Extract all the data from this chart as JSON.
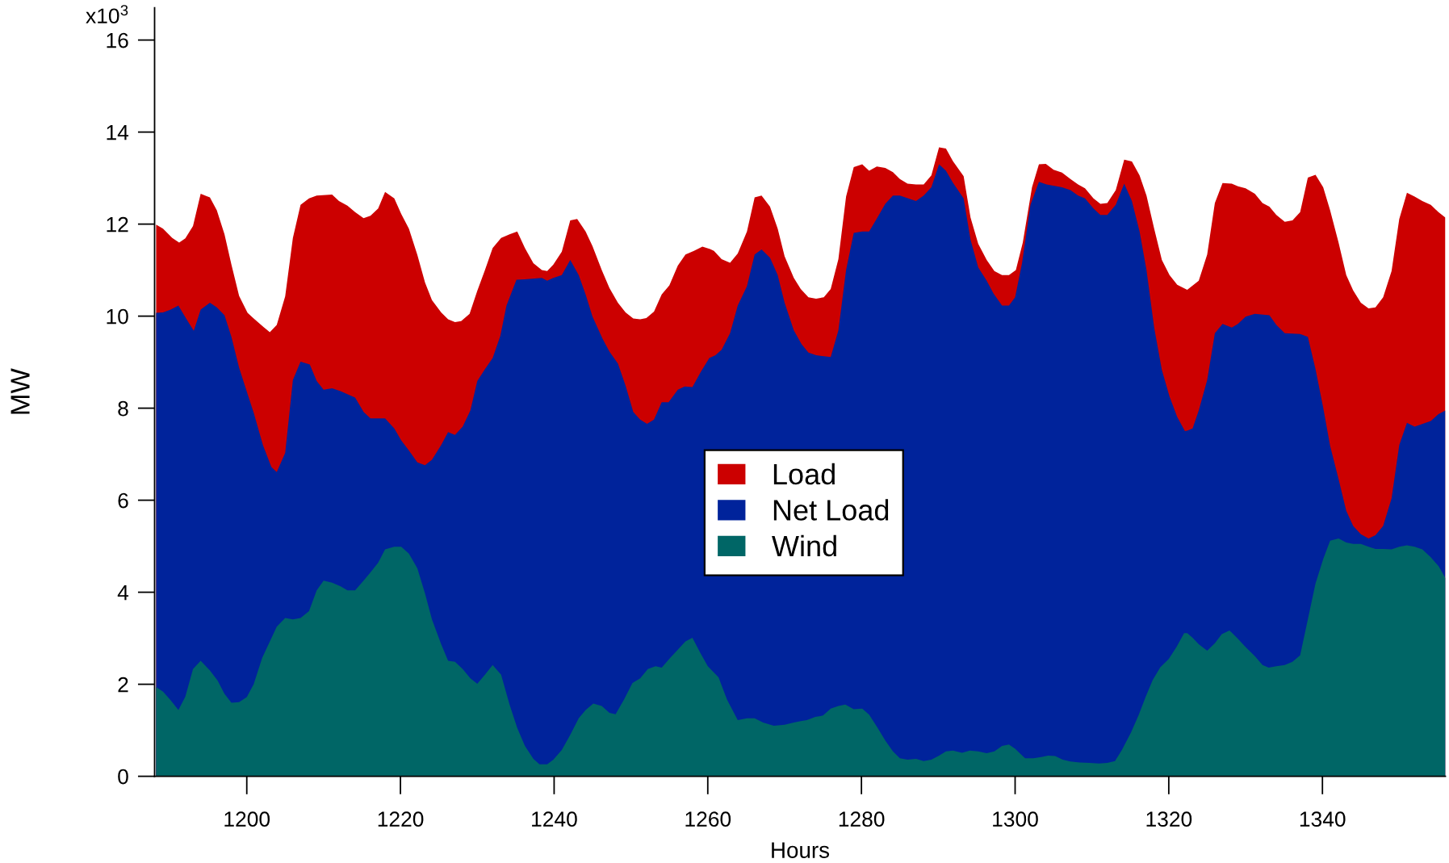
{
  "chart_data": {
    "type": "area",
    "xlabel": "Hours",
    "ylabel": "MW",
    "xlim": [
      1188,
      1356
    ],
    "xticks": [
      1200,
      1220,
      1240,
      1260,
      1280,
      1300,
      1320,
      1340
    ],
    "ylim": [
      0,
      16.7
    ],
    "yticks": [
      0,
      2,
      4,
      6,
      8,
      10,
      12,
      14,
      16
    ],
    "annotations": [
      "x10$^{3}$"
    ],
    "legend": "center",
    "series": [
      {
        "name": "Load",
        "color": "#cc0000",
        "x": [
          1188.2,
          1189.1,
          1190.3,
          1191.2,
          1192.0,
          1193.0,
          1194.0,
          1195.2,
          1196.1,
          1197.1,
          1198.0,
          1199.0,
          1200.1,
          1200.9,
          1202.2,
          1203.0,
          1203.9,
          1205.0,
          1206.0,
          1207.0,
          1208.1,
          1209.1,
          1211.1,
          1212.0,
          1213.1,
          1214.1,
          1215.2,
          1216.1,
          1217.1,
          1218.0,
          1219.2,
          1220.1,
          1221.1,
          1222.2,
          1223.2,
          1224.1,
          1225.3,
          1226.2,
          1227.1,
          1227.9,
          1229.0,
          1230.0,
          1231.0,
          1232.0,
          1233.1,
          1234.2,
          1235.2,
          1236.2,
          1237.3,
          1238.4,
          1239.1,
          1239.9,
          1241.0,
          1242.1,
          1243.0,
          1244.1,
          1245.0,
          1246.2,
          1247.2,
          1248.3,
          1249.3,
          1250.3,
          1251.2,
          1252.0,
          1253.0,
          1254.0,
          1255.0,
          1256.1,
          1257.1,
          1258.2,
          1259.3,
          1260.3,
          1260.8,
          1261.8,
          1262.9,
          1263.9,
          1265.1,
          1266.1,
          1267.0,
          1268.1,
          1269.1,
          1270.0,
          1271.2,
          1272.1,
          1273.1,
          1274.1,
          1275.1,
          1276.0,
          1277.0,
          1278.0,
          1279.0,
          1280.1,
          1281.0,
          1282.0,
          1283.1,
          1284.1,
          1285.0,
          1286.0,
          1287.1,
          1288.1,
          1289.1,
          1290.1,
          1291.0,
          1291.9,
          1293.3,
          1294.2,
          1295.2,
          1296.3,
          1297.3,
          1298.3,
          1299.2,
          1300.1,
          1301.0,
          1302.2,
          1303.1,
          1304.0,
          1305.0,
          1306.1,
          1307.2,
          1308.2,
          1309.1,
          1310.2,
          1311.1,
          1312.0,
          1313.1,
          1314.2,
          1315.2,
          1316.2,
          1317.1,
          1318.1,
          1319.1,
          1320.1,
          1321.1,
          1322.4,
          1323.9,
          1325.0,
          1326.0,
          1327.0,
          1328.2,
          1329.0,
          1330.0,
          1331.2,
          1332.2,
          1333.1,
          1334.0,
          1335.1,
          1336.1,
          1337.1,
          1338.1,
          1339.1,
          1340.1,
          1341.0,
          1342.1,
          1343.1,
          1344.0,
          1345.0,
          1346.0,
          1346.9,
          1347.9,
          1349.0,
          1350.0,
          1351.0,
          1352.0,
          1353.0,
          1354.1,
          1355.1,
          1356.0
        ],
        "values": [
          11.99,
          11.9,
          11.7,
          11.6,
          11.69,
          11.96,
          12.66,
          12.58,
          12.3,
          11.78,
          11.12,
          10.44,
          10.07,
          9.95,
          9.76,
          9.65,
          9.81,
          10.43,
          11.7,
          12.42,
          12.56,
          12.62,
          12.64,
          12.5,
          12.4,
          12.26,
          12.13,
          12.18,
          12.34,
          12.7,
          12.56,
          12.22,
          11.9,
          11.33,
          10.73,
          10.35,
          10.08,
          9.93,
          9.87,
          9.89,
          10.05,
          10.55,
          11.0,
          11.48,
          11.7,
          11.78,
          11.84,
          11.48,
          11.15,
          11.0,
          10.98,
          11.12,
          11.4,
          12.08,
          12.11,
          11.84,
          11.52,
          11.0,
          10.61,
          10.29,
          10.08,
          9.95,
          9.93,
          9.96,
          10.1,
          10.47,
          10.67,
          11.1,
          11.34,
          11.42,
          11.51,
          11.46,
          11.42,
          11.24,
          11.16,
          11.36,
          11.84,
          12.58,
          12.62,
          12.38,
          11.9,
          11.3,
          10.83,
          10.59,
          10.41,
          10.38,
          10.41,
          10.59,
          11.24,
          12.6,
          13.24,
          13.3,
          13.16,
          13.25,
          13.22,
          13.13,
          12.98,
          12.88,
          12.86,
          12.86,
          13.06,
          13.67,
          13.64,
          13.37,
          13.04,
          12.14,
          11.57,
          11.22,
          10.98,
          10.89,
          10.89,
          11.0,
          11.6,
          12.8,
          13.3,
          13.31,
          13.18,
          13.12,
          12.98,
          12.86,
          12.78,
          12.56,
          12.44,
          12.46,
          12.74,
          13.4,
          13.36,
          13.06,
          12.62,
          11.9,
          11.22,
          10.89,
          10.68,
          10.57,
          10.77,
          11.34,
          12.46,
          12.89,
          12.88,
          12.82,
          12.78,
          12.66,
          12.46,
          12.38,
          12.2,
          12.05,
          12.08,
          12.26,
          13.01,
          13.07,
          12.8,
          12.3,
          11.6,
          10.89,
          10.56,
          10.29,
          10.17,
          10.19,
          10.41,
          10.98,
          12.11,
          12.68,
          12.6,
          12.5,
          12.42,
          12.26,
          12.14
        ]
      },
      {
        "name": "Net Load",
        "color": "#00239b",
        "x": [
          1188.2,
          1189.1,
          1190.1,
          1191.1,
          1192.1,
          1193.1,
          1194.0,
          1195.2,
          1196.1,
          1197.1,
          1198.0,
          1199.0,
          1200.1,
          1200.9,
          1202.1,
          1203.2,
          1203.9,
          1205.0,
          1206.0,
          1207.0,
          1208.2,
          1209.1,
          1210.0,
          1211.1,
          1212.2,
          1214.1,
          1215.2,
          1216.1,
          1218.0,
          1219.2,
          1220.1,
          1221.1,
          1222.2,
          1223.2,
          1224.1,
          1225.3,
          1226.2,
          1227.1,
          1228.1,
          1229.1,
          1230.0,
          1231.0,
          1232.0,
          1233.0,
          1233.8,
          1235.1,
          1236.2,
          1238.4,
          1239.1,
          1239.9,
          1241.0,
          1242.1,
          1243.2,
          1244.1,
          1245.0,
          1246.3,
          1247.2,
          1248.3,
          1249.3,
          1250.3,
          1251.2,
          1252.1,
          1253.0,
          1254.0,
          1254.9,
          1256.1,
          1257.0,
          1258.0,
          1259.1,
          1260.2,
          1261.0,
          1261.8,
          1262.9,
          1263.9,
          1265.1,
          1266.1,
          1267.0,
          1268.1,
          1269.1,
          1270.0,
          1271.2,
          1272.2,
          1273.1,
          1274.1,
          1275.1,
          1276.0,
          1277.0,
          1278.0,
          1279.0,
          1280.1,
          1281.0,
          1282.0,
          1283.1,
          1284.1,
          1285.0,
          1287.1,
          1288.1,
          1289.1,
          1290.1,
          1291.0,
          1291.9,
          1293.3,
          1294.2,
          1295.2,
          1296.3,
          1297.2,
          1298.3,
          1299.2,
          1300.0,
          1300.9,
          1302.0,
          1303.1,
          1304.1,
          1306.1,
          1307.2,
          1308.2,
          1309.1,
          1310.2,
          1311.1,
          1312.0,
          1313.1,
          1314.2,
          1315.2,
          1316.2,
          1317.1,
          1318.1,
          1319.1,
          1320.1,
          1321.1,
          1322.1,
          1322.4,
          1323.1,
          1323.9,
          1325.0,
          1326.0,
          1327.0,
          1328.2,
          1329.0,
          1330.0,
          1331.2,
          1333.1,
          1334.0,
          1335.1,
          1337.1,
          1338.1,
          1339.1,
          1340.1,
          1341.0,
          1342.1,
          1343.1,
          1344.0,
          1345.0,
          1346.0,
          1346.9,
          1347.9,
          1349.0,
          1350.0,
          1351.0,
          1352.0,
          1354.1,
          1355.1,
          1356.0
        ],
        "values": [
          10.07,
          10.08,
          10.14,
          10.23,
          9.95,
          9.68,
          10.14,
          10.29,
          10.19,
          10.02,
          9.55,
          8.88,
          8.31,
          7.9,
          7.2,
          6.72,
          6.61,
          7.03,
          8.61,
          9.01,
          8.95,
          8.59,
          8.4,
          8.43,
          8.37,
          8.23,
          7.92,
          7.78,
          7.78,
          7.56,
          7.3,
          7.08,
          6.82,
          6.76,
          6.88,
          7.2,
          7.48,
          7.42,
          7.6,
          7.95,
          8.59,
          8.85,
          9.09,
          9.57,
          10.23,
          10.79,
          10.8,
          10.83,
          10.77,
          10.83,
          10.89,
          11.22,
          10.89,
          10.47,
          9.99,
          9.51,
          9.23,
          8.97,
          8.49,
          7.92,
          7.75,
          7.66,
          7.75,
          8.13,
          8.13,
          8.4,
          8.47,
          8.46,
          8.79,
          9.09,
          9.15,
          9.27,
          9.63,
          10.23,
          10.65,
          11.34,
          11.45,
          11.27,
          10.89,
          10.29,
          9.69,
          9.39,
          9.21,
          9.15,
          9.13,
          9.11,
          9.69,
          11.0,
          11.81,
          11.84,
          11.84,
          12.12,
          12.44,
          12.62,
          12.62,
          12.5,
          12.62,
          12.8,
          13.3,
          13.16,
          12.9,
          12.56,
          11.66,
          11.06,
          10.77,
          10.49,
          10.23,
          10.23,
          10.41,
          11.15,
          12.42,
          12.92,
          12.86,
          12.8,
          12.74,
          12.62,
          12.56,
          12.34,
          12.2,
          12.2,
          12.42,
          12.88,
          12.5,
          11.84,
          11.0,
          9.75,
          8.83,
          8.25,
          7.81,
          7.5,
          7.51,
          7.56,
          7.95,
          8.61,
          9.63,
          9.83,
          9.75,
          9.83,
          9.99,
          10.05,
          10.02,
          9.81,
          9.63,
          9.61,
          9.55,
          8.85,
          8.01,
          7.18,
          6.46,
          5.77,
          5.44,
          5.26,
          5.17,
          5.24,
          5.44,
          6.04,
          7.2,
          7.68,
          7.6,
          7.72,
          7.87,
          7.95
        ]
      },
      {
        "name": "Wind",
        "color": "#006666",
        "x": [
          1188.2,
          1189.1,
          1190.1,
          1191.1,
          1192.0,
          1193.0,
          1194.0,
          1195.2,
          1196.2,
          1197.1,
          1198.0,
          1199.0,
          1200.0,
          1200.9,
          1202.0,
          1203.9,
          1205.0,
          1206.0,
          1207.0,
          1208.1,
          1209.1,
          1210.0,
          1211.1,
          1212.2,
          1213.1,
          1214.1,
          1215.2,
          1216.1,
          1217.1,
          1218.0,
          1219.2,
          1220.1,
          1221.1,
          1222.2,
          1223.2,
          1224.1,
          1225.3,
          1226.2,
          1227.1,
          1228.1,
          1229.1,
          1230.0,
          1231.0,
          1232.0,
          1233.1,
          1234.2,
          1235.2,
          1236.2,
          1237.3,
          1238.1,
          1239.1,
          1239.9,
          1241.0,
          1242.1,
          1243.2,
          1244.1,
          1245.1,
          1246.2,
          1247.2,
          1248.0,
          1249.1,
          1250.2,
          1251.2,
          1252.2,
          1253.2,
          1254.0,
          1255.1,
          1256.1,
          1257.1,
          1258.0,
          1259.0,
          1260.0,
          1261.4,
          1262.5,
          1263.9,
          1265.1,
          1266.1,
          1267.2,
          1268.6,
          1270.0,
          1271.2,
          1272.1,
          1272.9,
          1274.0,
          1275.0,
          1276.0,
          1277.0,
          1277.9,
          1279.0,
          1280.1,
          1281.0,
          1282.0,
          1283.1,
          1284.1,
          1285.0,
          1286.0,
          1287.1,
          1288.1,
          1289.1,
          1290.1,
          1291.0,
          1291.9,
          1293.1,
          1294.1,
          1295.2,
          1296.3,
          1297.3,
          1298.3,
          1299.2,
          1300.0,
          1301.3,
          1302.4,
          1303.4,
          1304.3,
          1305.2,
          1306.2,
          1307.2,
          1308.4,
          1309.7,
          1310.9,
          1312.0,
          1313.0,
          1313.9,
          1315.1,
          1316.1,
          1317.0,
          1317.9,
          1318.9,
          1320.0,
          1321.0,
          1322.0,
          1322.4,
          1323.1,
          1323.9,
          1325.0,
          1326.0,
          1326.9,
          1327.9,
          1329.0,
          1330.0,
          1331.2,
          1332.2,
          1333.0,
          1334.0,
          1335.1,
          1336.1,
          1337.1,
          1338.1,
          1339.1,
          1340.1,
          1341.0,
          1342.1,
          1343.1,
          1344.0,
          1345.0,
          1346.0,
          1346.9,
          1347.9,
          1349.0,
          1350.0,
          1351.0,
          1352.0,
          1353.0,
          1354.1,
          1355.1,
          1356.0
        ],
        "values": [
          1.94,
          1.84,
          1.65,
          1.44,
          1.73,
          2.33,
          2.51,
          2.3,
          2.08,
          1.79,
          1.6,
          1.61,
          1.72,
          2.0,
          2.57,
          3.25,
          3.44,
          3.41,
          3.44,
          3.59,
          4.04,
          4.25,
          4.21,
          4.13,
          4.04,
          4.04,
          4.25,
          4.43,
          4.64,
          4.93,
          4.99,
          4.99,
          4.84,
          4.52,
          3.97,
          3.41,
          2.87,
          2.51,
          2.49,
          2.33,
          2.13,
          2.01,
          2.21,
          2.42,
          2.21,
          1.56,
          1.05,
          0.66,
          0.38,
          0.26,
          0.26,
          0.36,
          0.57,
          0.9,
          1.26,
          1.44,
          1.58,
          1.53,
          1.38,
          1.35,
          1.67,
          2.03,
          2.13,
          2.33,
          2.39,
          2.36,
          2.57,
          2.75,
          2.93,
          3.01,
          2.69,
          2.39,
          2.15,
          1.67,
          1.22,
          1.26,
          1.26,
          1.17,
          1.1,
          1.12,
          1.17,
          1.2,
          1.22,
          1.29,
          1.32,
          1.47,
          1.53,
          1.56,
          1.46,
          1.47,
          1.34,
          1.08,
          0.78,
          0.54,
          0.39,
          0.36,
          0.38,
          0.33,
          0.36,
          0.45,
          0.54,
          0.56,
          0.51,
          0.56,
          0.54,
          0.5,
          0.54,
          0.66,
          0.69,
          0.6,
          0.39,
          0.39,
          0.42,
          0.45,
          0.44,
          0.36,
          0.32,
          0.3,
          0.29,
          0.28,
          0.29,
          0.33,
          0.57,
          0.96,
          1.34,
          1.73,
          2.09,
          2.37,
          2.55,
          2.81,
          3.11,
          3.11,
          3.01,
          2.87,
          2.73,
          2.89,
          3.09,
          3.17,
          2.99,
          2.81,
          2.61,
          2.42,
          2.36,
          2.39,
          2.42,
          2.49,
          2.63,
          3.41,
          4.19,
          4.72,
          5.12,
          5.17,
          5.08,
          5.05,
          5.05,
          4.99,
          4.94,
          4.94,
          4.93,
          4.99,
          5.02,
          4.99,
          4.93,
          4.76,
          4.57,
          4.31
        ]
      }
    ]
  }
}
